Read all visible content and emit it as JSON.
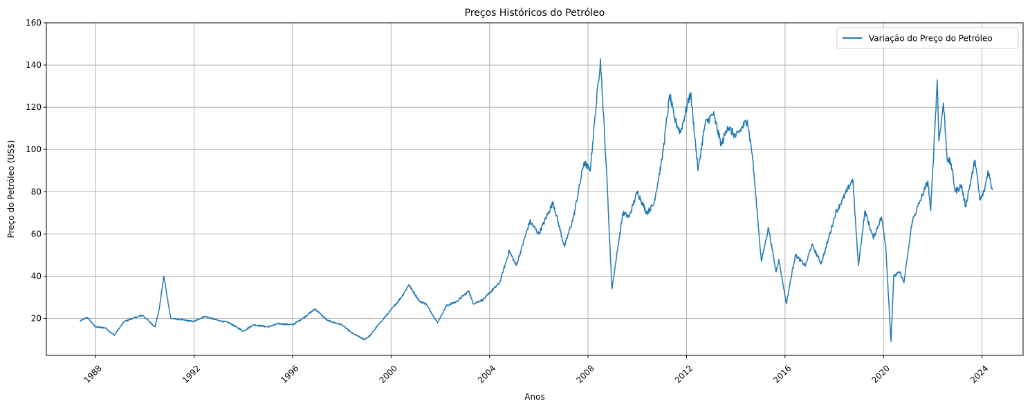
{
  "chart_data": {
    "type": "line",
    "title": "Preços Históricos do Petróleo",
    "xlabel": "Anos",
    "ylabel": "Preço do Petróleo (US$)",
    "xlim": [
      "1986-01-01",
      "2025-09-01"
    ],
    "ylim": [
      2.5,
      160
    ],
    "x_ticks": [
      "1988",
      "1992",
      "1996",
      "2000",
      "2004",
      "2008",
      "2012",
      "2016",
      "2020",
      "2024"
    ],
    "y_ticks": [
      20,
      40,
      60,
      80,
      100,
      120,
      140,
      160
    ],
    "grid": true,
    "legend_position": "top-right",
    "series": [
      {
        "name": "Variação do Preço do Petróleo",
        "color": "#1f77b4",
        "x": [
          "1987-05-20",
          "1987-09-01",
          "1988-01-01",
          "1988-06-01",
          "1988-10-01",
          "1989-03-01",
          "1989-07-01",
          "1989-12-01",
          "1990-06-01",
          "1990-08-01",
          "1990-10-10",
          "1991-01-20",
          "1991-06-01",
          "1992-01-01",
          "1992-06-01",
          "1993-01-01",
          "1993-06-01",
          "1994-01-01",
          "1994-06-01",
          "1995-01-01",
          "1995-06-01",
          "1996-01-01",
          "1996-06-01",
          "1996-12-01",
          "1997-06-01",
          "1998-01-01",
          "1998-06-01",
          "1998-12-01",
          "1999-03-01",
          "1999-06-01",
          "2000-01-01",
          "2000-06-01",
          "2000-09-20",
          "2001-03-01",
          "2001-06-01",
          "2001-11-20",
          "2002-04-01",
          "2002-09-01",
          "2003-03-01",
          "2003-05-01",
          "2003-10-01",
          "2004-06-01",
          "2004-10-20",
          "2005-02-01",
          "2005-08-20",
          "2006-01-01",
          "2006-08-01",
          "2007-01-15",
          "2007-06-01",
          "2007-11-01",
          "2008-02-01",
          "2008-07-03",
          "2008-10-01",
          "2008-12-20",
          "2009-06-01",
          "2009-09-01",
          "2010-01-01",
          "2010-05-20",
          "2010-09-01",
          "2011-01-01",
          "2011-04-28",
          "2011-07-01",
          "2011-10-01",
          "2012-03-01",
          "2012-06-20",
          "2012-10-01",
          "2013-02-01",
          "2013-06-01",
          "2013-09-01",
          "2014-01-01",
          "2014-06-20",
          "2014-09-01",
          "2015-01-15",
          "2015-05-01",
          "2015-08-20",
          "2015-10-01",
          "2016-01-20",
          "2016-06-01",
          "2016-11-01",
          "2017-02-01",
          "2017-06-20",
          "2017-10-01",
          "2018-01-20",
          "2018-05-01",
          "2018-10-01",
          "2018-12-24",
          "2019-04-01",
          "2019-08-01",
          "2019-12-01",
          "2020-02-01",
          "2020-04-21",
          "2020-06-01",
          "2020-09-01",
          "2020-10-30",
          "2021-03-01",
          "2021-07-01",
          "2021-10-20",
          "2021-12-01",
          "2022-03-08",
          "2022-04-01",
          "2022-06-08",
          "2022-08-01",
          "2022-10-01",
          "2022-12-01",
          "2023-03-01",
          "2023-05-01",
          "2023-09-20",
          "2023-12-01",
          "2024-02-01",
          "2024-04-01",
          "2024-06-01"
        ],
        "y": [
          18.8,
          20.5,
          16.0,
          15.5,
          12.0,
          18.5,
          20.0,
          21.5,
          16.0,
          24.0,
          40.0,
          20.0,
          19.5,
          18.5,
          21.0,
          19.0,
          18.0,
          14.0,
          17.0,
          16.0,
          17.5,
          17.0,
          20.0,
          24.5,
          19.0,
          17.0,
          13.0,
          10.0,
          12.0,
          16.0,
          24.0,
          30.0,
          36.0,
          28.0,
          27.0,
          18.0,
          26.0,
          28.0,
          33.0,
          27.0,
          29.0,
          37.0,
          52.0,
          45.0,
          66.0,
          60.0,
          75.0,
          54.0,
          68.0,
          94.0,
          90.0,
          143.0,
          90.0,
          34.0,
          70.0,
          68.0,
          80.0,
          70.0,
          74.0,
          95.0,
          126.0,
          115.0,
          108.0,
          127.0,
          90.0,
          112.0,
          117.0,
          102.0,
          111.0,
          106.0,
          114.0,
          98.0,
          47.0,
          63.0,
          42.0,
          48.0,
          27.0,
          50.0,
          45.0,
          55.0,
          46.0,
          57.0,
          70.0,
          76.0,
          86.0,
          45.0,
          71.0,
          58.0,
          68.0,
          55.0,
          9.0,
          40.0,
          42.0,
          37.0,
          66.0,
          76.0,
          85.0,
          71.0,
          133.0,
          104.0,
          122.0,
          96.0,
          93.0,
          80.0,
          83.0,
          73.0,
          95.0,
          76.0,
          80.0,
          90.0,
          81.0
        ]
      }
    ]
  }
}
